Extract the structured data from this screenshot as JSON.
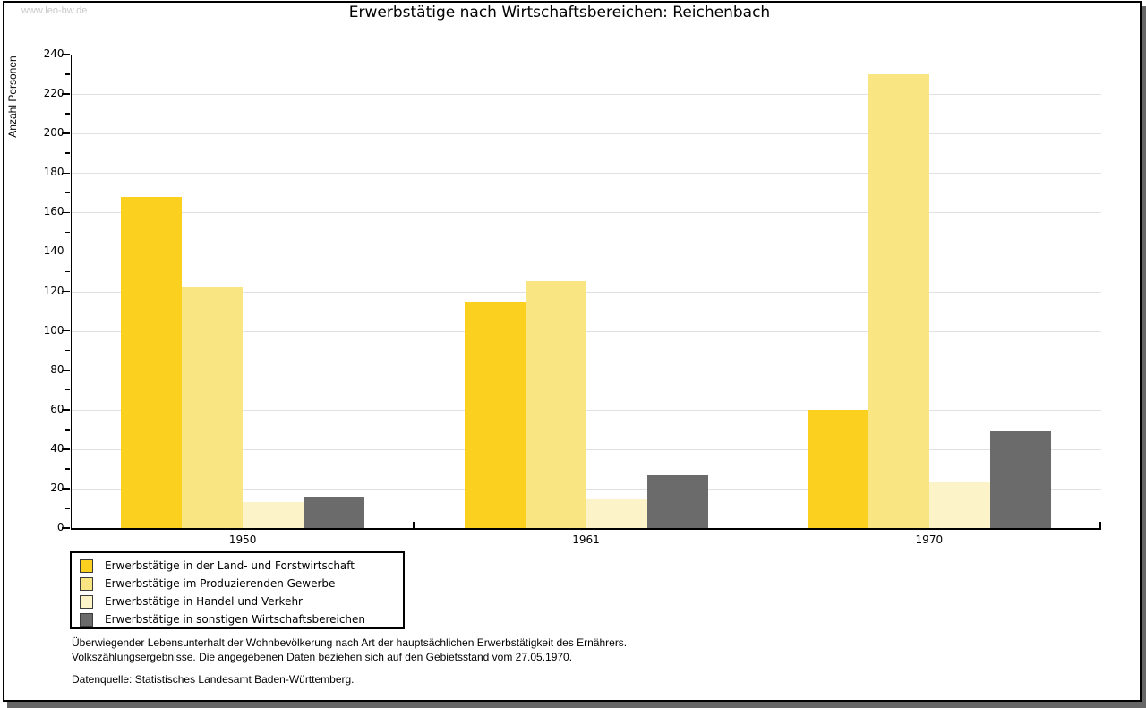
{
  "watermark": "www.leo-bw.de",
  "chart_data": {
    "type": "bar",
    "title": "Erwerbstätige nach Wirtschaftsbereichen: Reichenbach",
    "xlabel": "",
    "ylabel": "Anzahl Personen",
    "categories": [
      "1950",
      "1961",
      "1970"
    ],
    "series": [
      {
        "name": "Erwerbstätige in der Land- und Forstwirtschaft",
        "color": "#FBD01E",
        "values": [
          168,
          115,
          60
        ]
      },
      {
        "name": "Erwerbstätige im Produzierenden Gewerbe",
        "color": "#FAE583",
        "values": [
          122,
          125,
          230
        ]
      },
      {
        "name": "Erwerbstätige in Handel und Verkehr",
        "color": "#FCF3C8",
        "values": [
          13,
          15,
          23
        ]
      },
      {
        "name": "Erwerbstätige in sonstigen Wirtschaftsbereichen",
        "color": "#6B6B6B",
        "values": [
          16,
          27,
          49
        ]
      }
    ],
    "ylim": [
      0,
      240
    ],
    "ytick_step": 20,
    "minor_tick_step": 10,
    "grid": true,
    "legend_position": "bottom-left"
  },
  "footnote": {
    "line1": "Überwiegender Lebensunterhalt der Wohnbevölkerung nach Art der hauptsächlichen Erwerbstätigkeit des Ernährers.",
    "line2": "Volkszählungsergebnisse. Die angegebenen Daten beziehen sich auf den Gebietsstand vom 27.05.1970.",
    "source": "Datenquelle: Statistisches Landesamt Baden-Württemberg."
  }
}
